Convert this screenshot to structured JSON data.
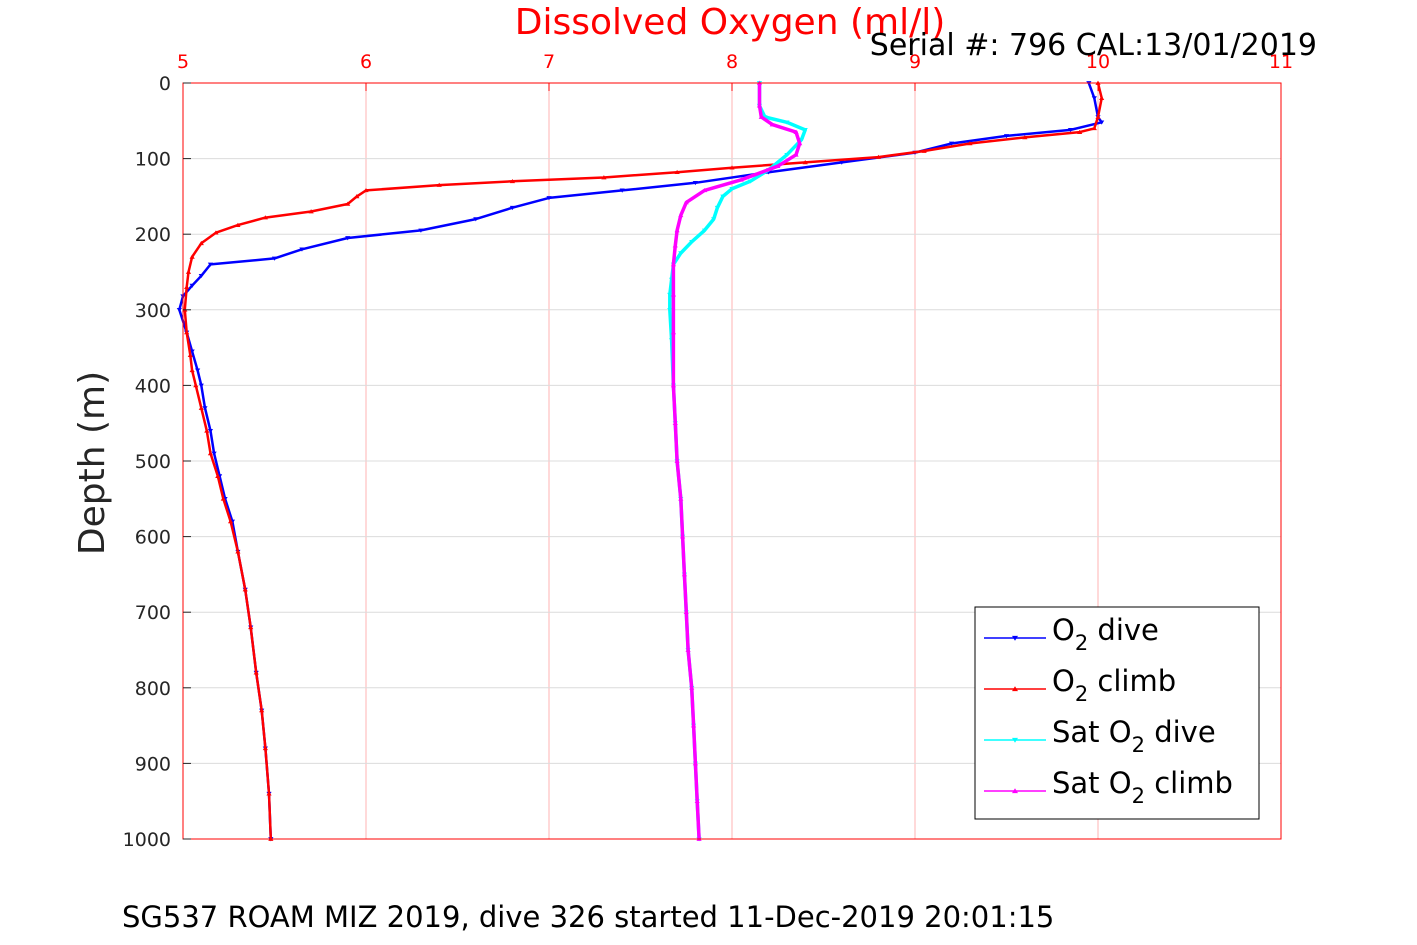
{
  "colors": {
    "grid": "#ffb3b3",
    "axis": "#ff0000",
    "dive": "#0000ff",
    "climb": "#ff0000",
    "sat_dive": "#00ffff",
    "sat_climb": "#ff00ff"
  },
  "serial_text": "Serial #: 796  CAL:13/01/2019",
  "footer_text": "SG537 ROAM MIZ 2019, dive 326 started 11-Dec-2019 20:01:15",
  "chart_data": {
    "type": "line",
    "title": "Dissolved Oxygen (ml/l)",
    "xlabel": "",
    "ylabel": "Depth (m)",
    "xlim": [
      5,
      11
    ],
    "ylim": [
      0,
      1000
    ],
    "y_reversed": true,
    "x_axis_location": "top",
    "grid": true,
    "legend_placement": "bottom-right",
    "x_ticks": [
      "5",
      "6",
      "7",
      "8",
      "9",
      "10",
      "11"
    ],
    "y_ticks": [
      "0",
      "100",
      "200",
      "300",
      "400",
      "500",
      "600",
      "700",
      "800",
      "900",
      "1000"
    ],
    "series": [
      {
        "key": "dive",
        "name_main": "O",
        "name_sub": "2",
        "name_tail": " dive",
        "marker": "triangle-down",
        "points": [
          [
            9.95,
            0
          ],
          [
            9.98,
            20
          ],
          [
            10.0,
            45
          ],
          [
            10.02,
            52
          ],
          [
            9.85,
            62
          ],
          [
            9.5,
            70
          ],
          [
            9.2,
            80
          ],
          [
            9.0,
            92
          ],
          [
            8.6,
            105
          ],
          [
            8.2,
            118
          ],
          [
            7.8,
            132
          ],
          [
            7.4,
            142
          ],
          [
            7.0,
            152
          ],
          [
            6.8,
            165
          ],
          [
            6.6,
            180
          ],
          [
            6.3,
            195
          ],
          [
            5.9,
            205
          ],
          [
            5.65,
            220
          ],
          [
            5.5,
            232
          ],
          [
            5.15,
            240
          ],
          [
            5.1,
            255
          ],
          [
            5.05,
            268
          ],
          [
            5.0,
            282
          ],
          [
            4.98,
            300
          ],
          [
            5.02,
            330
          ],
          [
            5.05,
            355
          ],
          [
            5.08,
            380
          ],
          [
            5.1,
            400
          ],
          [
            5.12,
            430
          ],
          [
            5.15,
            460
          ],
          [
            5.17,
            490
          ],
          [
            5.2,
            520
          ],
          [
            5.23,
            550
          ],
          [
            5.27,
            580
          ],
          [
            5.3,
            620
          ],
          [
            5.34,
            670
          ],
          [
            5.37,
            720
          ],
          [
            5.4,
            780
          ],
          [
            5.43,
            830
          ],
          [
            5.45,
            880
          ],
          [
            5.47,
            940
          ],
          [
            5.48,
            1000
          ]
        ]
      },
      {
        "key": "climb",
        "name_main": "O",
        "name_sub": "2",
        "name_tail": " climb",
        "marker": "triangle-up",
        "points": [
          [
            10.0,
            0
          ],
          [
            10.02,
            20
          ],
          [
            10.0,
            45
          ],
          [
            9.98,
            60
          ],
          [
            9.9,
            65
          ],
          [
            9.6,
            72
          ],
          [
            9.3,
            80
          ],
          [
            9.05,
            90
          ],
          [
            8.8,
            98
          ],
          [
            8.4,
            105
          ],
          [
            8.0,
            112
          ],
          [
            7.7,
            118
          ],
          [
            7.3,
            125
          ],
          [
            6.8,
            130
          ],
          [
            6.4,
            135
          ],
          [
            6.0,
            142
          ],
          [
            5.95,
            150
          ],
          [
            5.9,
            160
          ],
          [
            5.7,
            170
          ],
          [
            5.45,
            178
          ],
          [
            5.3,
            188
          ],
          [
            5.18,
            198
          ],
          [
            5.1,
            212
          ],
          [
            5.05,
            230
          ],
          [
            5.03,
            250
          ],
          [
            5.02,
            270
          ],
          [
            5.01,
            300
          ],
          [
            5.02,
            330
          ],
          [
            5.04,
            360
          ],
          [
            5.05,
            380
          ],
          [
            5.07,
            400
          ],
          [
            5.1,
            430
          ],
          [
            5.13,
            460
          ],
          [
            5.15,
            490
          ],
          [
            5.19,
            520
          ],
          [
            5.22,
            550
          ],
          [
            5.26,
            580
          ],
          [
            5.3,
            620
          ],
          [
            5.34,
            670
          ],
          [
            5.37,
            720
          ],
          [
            5.4,
            780
          ],
          [
            5.43,
            830
          ],
          [
            5.45,
            880
          ],
          [
            5.47,
            940
          ],
          [
            5.48,
            1000
          ]
        ]
      },
      {
        "key": "sat_dive",
        "name_main": "Sat O",
        "name_sub": "2",
        "name_tail": " dive",
        "marker": "triangle-down",
        "points": [
          [
            8.15,
            0
          ],
          [
            8.15,
            30
          ],
          [
            8.18,
            45
          ],
          [
            8.3,
            52
          ],
          [
            8.4,
            62
          ],
          [
            8.38,
            75
          ],
          [
            8.3,
            95
          ],
          [
            8.2,
            115
          ],
          [
            8.1,
            130
          ],
          [
            8.0,
            140
          ],
          [
            7.95,
            150
          ],
          [
            7.92,
            165
          ],
          [
            7.9,
            180
          ],
          [
            7.85,
            195
          ],
          [
            7.78,
            210
          ],
          [
            7.72,
            225
          ],
          [
            7.68,
            240
          ],
          [
            7.67,
            260
          ],
          [
            7.66,
            280
          ],
          [
            7.66,
            300
          ],
          [
            7.67,
            340
          ],
          [
            7.68,
            400
          ],
          [
            7.69,
            450
          ],
          [
            7.7,
            500
          ],
          [
            7.72,
            550
          ],
          [
            7.73,
            600
          ],
          [
            7.74,
            650
          ],
          [
            7.75,
            700
          ],
          [
            7.76,
            750
          ],
          [
            7.78,
            800
          ],
          [
            7.79,
            850
          ],
          [
            7.8,
            900
          ],
          [
            7.81,
            950
          ],
          [
            7.82,
            1000
          ]
        ]
      },
      {
        "key": "sat_climb",
        "name_main": "Sat O",
        "name_sub": "2",
        "name_tail": " climb",
        "marker": "triangle-up",
        "points": [
          [
            8.15,
            0
          ],
          [
            8.15,
            30
          ],
          [
            8.16,
            45
          ],
          [
            8.22,
            55
          ],
          [
            8.35,
            65
          ],
          [
            8.37,
            80
          ],
          [
            8.35,
            95
          ],
          [
            8.25,
            110
          ],
          [
            8.05,
            128
          ],
          [
            7.85,
            142
          ],
          [
            7.75,
            158
          ],
          [
            7.72,
            175
          ],
          [
            7.7,
            195
          ],
          [
            7.69,
            215
          ],
          [
            7.68,
            240
          ],
          [
            7.68,
            280
          ],
          [
            7.68,
            330
          ],
          [
            7.68,
            400
          ],
          [
            7.69,
            450
          ],
          [
            7.7,
            500
          ],
          [
            7.72,
            550
          ],
          [
            7.73,
            600
          ],
          [
            7.74,
            650
          ],
          [
            7.75,
            700
          ],
          [
            7.76,
            750
          ],
          [
            7.78,
            800
          ],
          [
            7.79,
            850
          ],
          [
            7.8,
            900
          ],
          [
            7.81,
            950
          ],
          [
            7.82,
            1000
          ]
        ]
      }
    ]
  }
}
